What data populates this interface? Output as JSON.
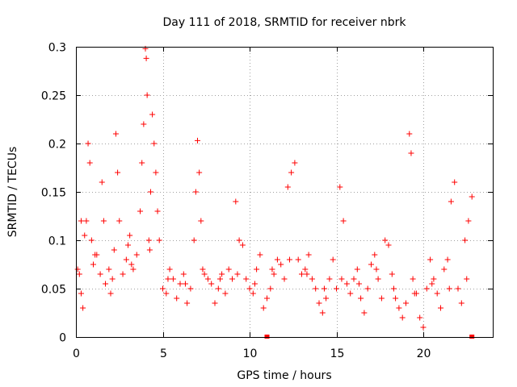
{
  "chart_data": {
    "type": "scatter",
    "title": "Day 111 of 2018, SRMTID for receiver nbrk",
    "xlabel": "GPS time / hours",
    "ylabel": "SRMTID / TECUs",
    "xlim": [
      0,
      24
    ],
    "ylim": [
      0,
      0.3
    ],
    "x_ticks": [
      0,
      5,
      10,
      15,
      20
    ],
    "x_tick_labels": [
      "0",
      "5",
      "10",
      "15",
      "20"
    ],
    "y_ticks": [
      0,
      0.05,
      0.1,
      0.15,
      0.2,
      0.25,
      0.3
    ],
    "y_tick_labels": [
      "0",
      "0.05",
      "0.1",
      "0.15",
      "0.2",
      "0.25",
      "0.3"
    ],
    "grid": true,
    "marker": "plus",
    "series": [
      {
        "name": "SRMTID",
        "color": "#ff0000",
        "points": [
          [
            0.1,
            0.07
          ],
          [
            0.2,
            0.065
          ],
          [
            0.3,
            0.045
          ],
          [
            0.4,
            0.03
          ],
          [
            0.5,
            0.105
          ],
          [
            0.6,
            0.12
          ],
          [
            0.7,
            0.2
          ],
          [
            0.8,
            0.18
          ],
          [
            0.9,
            0.1
          ],
          [
            1.0,
            0.075
          ],
          [
            1.2,
            0.085
          ],
          [
            1.4,
            0.065
          ],
          [
            1.5,
            0.16
          ],
          [
            1.6,
            0.12
          ],
          [
            1.7,
            0.055
          ],
          [
            1.9,
            0.07
          ],
          [
            2.0,
            0.045
          ],
          [
            2.2,
            0.09
          ],
          [
            2.3,
            0.21
          ],
          [
            2.4,
            0.17
          ],
          [
            2.5,
            0.12
          ],
          [
            2.7,
            0.065
          ],
          [
            2.9,
            0.08
          ],
          [
            3.0,
            0.095
          ],
          [
            3.1,
            0.105
          ],
          [
            3.3,
            0.07
          ],
          [
            3.5,
            0.085
          ],
          [
            3.7,
            0.13
          ],
          [
            3.8,
            0.18
          ],
          [
            3.9,
            0.22
          ],
          [
            4.0,
            0.298
          ],
          [
            4.05,
            0.288
          ],
          [
            4.1,
            0.25
          ],
          [
            4.2,
            0.1
          ],
          [
            4.3,
            0.15
          ],
          [
            4.4,
            0.23
          ],
          [
            4.5,
            0.2
          ],
          [
            4.6,
            0.17
          ],
          [
            4.7,
            0.13
          ],
          [
            4.8,
            0.1
          ],
          [
            5.0,
            0.05
          ],
          [
            5.2,
            0.045
          ],
          [
            5.4,
            0.07
          ],
          [
            5.6,
            0.06
          ],
          [
            5.8,
            0.04
          ],
          [
            6.0,
            0.055
          ],
          [
            6.2,
            0.065
          ],
          [
            6.4,
            0.035
          ],
          [
            6.6,
            0.05
          ],
          [
            6.8,
            0.1
          ],
          [
            6.9,
            0.15
          ],
          [
            7.0,
            0.203
          ],
          [
            7.1,
            0.17
          ],
          [
            7.2,
            0.12
          ],
          [
            7.4,
            0.065
          ],
          [
            7.6,
            0.06
          ],
          [
            7.8,
            0.055
          ],
          [
            8.0,
            0.035
          ],
          [
            8.2,
            0.05
          ],
          [
            8.4,
            0.065
          ],
          [
            8.6,
            0.045
          ],
          [
            8.8,
            0.07
          ],
          [
            9.0,
            0.06
          ],
          [
            9.2,
            0.14
          ],
          [
            9.4,
            0.1
          ],
          [
            9.6,
            0.095
          ],
          [
            9.8,
            0.06
          ],
          [
            10.0,
            0.05
          ],
          [
            10.2,
            0.045
          ],
          [
            10.4,
            0.07
          ],
          [
            10.6,
            0.085
          ],
          [
            10.8,
            0.03
          ],
          [
            11.0,
            0.04
          ],
          [
            11.2,
            0.05
          ],
          [
            11.4,
            0.065
          ],
          [
            11.6,
            0.08
          ],
          [
            11.8,
            0.075
          ],
          [
            12.0,
            0.06
          ],
          [
            12.2,
            0.155
          ],
          [
            12.4,
            0.17
          ],
          [
            12.6,
            0.18
          ],
          [
            12.8,
            0.08
          ],
          [
            13.0,
            0.065
          ],
          [
            13.2,
            0.07
          ],
          [
            13.4,
            0.085
          ],
          [
            13.6,
            0.06
          ],
          [
            13.8,
            0.05
          ],
          [
            14.0,
            0.035
          ],
          [
            14.2,
            0.025
          ],
          [
            14.4,
            0.04
          ],
          [
            14.6,
            0.06
          ],
          [
            14.8,
            0.08
          ],
          [
            15.0,
            0.05
          ],
          [
            15.2,
            0.155
          ],
          [
            15.4,
            0.12
          ],
          [
            15.6,
            0.055
          ],
          [
            15.8,
            0.045
          ],
          [
            16.0,
            0.06
          ],
          [
            16.2,
            0.07
          ],
          [
            16.4,
            0.04
          ],
          [
            16.6,
            0.025
          ],
          [
            16.8,
            0.05
          ],
          [
            17.0,
            0.075
          ],
          [
            17.2,
            0.085
          ],
          [
            17.4,
            0.06
          ],
          [
            17.6,
            0.04
          ],
          [
            17.8,
            0.1
          ],
          [
            18.0,
            0.095
          ],
          [
            18.2,
            0.065
          ],
          [
            18.4,
            0.04
          ],
          [
            18.6,
            0.03
          ],
          [
            18.8,
            0.02
          ],
          [
            19.0,
            0.035
          ],
          [
            19.2,
            0.21
          ],
          [
            19.3,
            0.19
          ],
          [
            19.4,
            0.06
          ],
          [
            19.6,
            0.045
          ],
          [
            19.8,
            0.02
          ],
          [
            20.0,
            0.01
          ],
          [
            20.2,
            0.05
          ],
          [
            20.4,
            0.08
          ],
          [
            20.6,
            0.06
          ],
          [
            20.8,
            0.045
          ],
          [
            21.0,
            0.03
          ],
          [
            21.2,
            0.07
          ],
          [
            21.4,
            0.08
          ],
          [
            21.6,
            0.14
          ],
          [
            21.8,
            0.16
          ],
          [
            22.0,
            0.05
          ],
          [
            22.2,
            0.035
          ],
          [
            22.4,
            0.1
          ],
          [
            22.6,
            0.12
          ],
          [
            22.8,
            0.145
          ],
          [
            0.3,
            0.12
          ],
          [
            1.1,
            0.085
          ],
          [
            2.1,
            0.06
          ],
          [
            3.2,
            0.075
          ],
          [
            4.25,
            0.09
          ],
          [
            5.3,
            0.06
          ],
          [
            6.3,
            0.055
          ],
          [
            7.3,
            0.07
          ],
          [
            8.3,
            0.06
          ],
          [
            9.3,
            0.065
          ],
          [
            10.3,
            0.055
          ],
          [
            11.3,
            0.07
          ],
          [
            12.3,
            0.08
          ],
          [
            13.3,
            0.065
          ],
          [
            14.3,
            0.05
          ],
          [
            15.3,
            0.06
          ],
          [
            16.3,
            0.055
          ],
          [
            17.3,
            0.07
          ],
          [
            18.3,
            0.05
          ],
          [
            19.5,
            0.045
          ],
          [
            20.5,
            0.055
          ],
          [
            21.5,
            0.05
          ],
          [
            22.5,
            0.06
          ]
        ],
        "zero_points": [
          [
            11,
            0
          ],
          [
            22.8,
            0
          ]
        ]
      }
    ]
  }
}
